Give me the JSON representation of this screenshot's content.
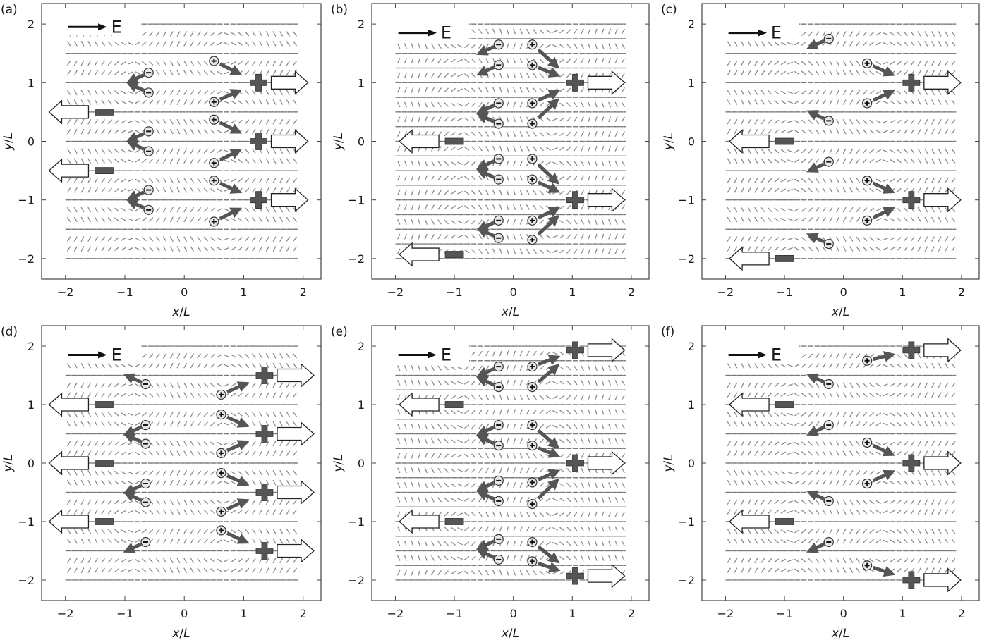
{
  "figure": {
    "field_label": "E",
    "x_axis_label": "x/L",
    "y_axis_label": "y/L",
    "x_ticks": [
      -2,
      -1,
      0,
      1,
      2
    ],
    "y_ticks": [
      2,
      1,
      0,
      -1,
      -2
    ],
    "x_range": [
      -2.4,
      2.3
    ],
    "y_range": [
      -2.35,
      2.35
    ]
  },
  "panels": [
    {
      "label": "(a)",
      "lines": [
        -2,
        -1.5,
        -1,
        -0.5,
        0,
        0.5,
        1,
        1.5,
        2
      ],
      "strong_lines": [
        -1.5,
        -0.5,
        0.5,
        1.5
      ],
      "bend_sign": 1,
      "neg_walls": [
        0.5,
        -0.5
      ],
      "pos_walls": [
        1,
        0,
        -1
      ],
      "wall_neg_x": -1.35,
      "wall_pos_x": 1.25,
      "neg_defect_x": -0.6,
      "pos_defect_x": 0.5,
      "neg_defect_y": [
        1.17,
        0.83,
        0.17,
        -0.17,
        -0.83,
        -1.17
      ],
      "pos_defect_y": [
        1.37,
        0.67,
        0.37,
        -0.37,
        -0.67,
        -1.37
      ]
    },
    {
      "label": "(b)",
      "lines": [
        -2,
        -1.75,
        -1.5,
        -1.25,
        -1,
        -0.75,
        -0.5,
        -0.25,
        0,
        0.25,
        0.5,
        0.75,
        1,
        1.25,
        1.5,
        1.75,
        2
      ],
      "strong_lines": [
        -1.5,
        -0.5,
        0.5,
        1.5
      ],
      "bend_sign": 1,
      "neg_walls": [
        0,
        -1.93
      ],
      "pos_walls": [
        1,
        -1
      ],
      "wall_neg_x": -1.0,
      "wall_pos_x": 1.05,
      "neg_defect_x": -0.25,
      "pos_defect_x": 0.32,
      "neg_defect_y": [
        1.65,
        1.3,
        0.65,
        0.3,
        -0.3,
        -0.65,
        -1.35,
        -1.65
      ],
      "pos_defect_y": [
        1.65,
        1.3,
        0.65,
        0.3,
        -0.3,
        -0.65,
        -1.35,
        -1.68
      ]
    },
    {
      "label": "(c)",
      "lines": [
        -2,
        -1.5,
        -1,
        -0.5,
        0,
        0.5,
        1,
        1.5,
        2
      ],
      "strong_lines": [
        -1.5,
        -0.5,
        0.5,
        1.5
      ],
      "bend_sign": 1,
      "neg_walls": [
        0,
        -2
      ],
      "pos_walls": [
        1,
        -1
      ],
      "wall_neg_x": -1.0,
      "wall_pos_x": 1.15,
      "neg_defect_x": -0.25,
      "pos_defect_x": 0.4,
      "neg_defect_y": [
        1.75,
        0.35,
        -0.35,
        -1.75
      ],
      "pos_defect_y": [
        1.33,
        0.65,
        -0.67,
        -1.35
      ]
    },
    {
      "label": "(d)",
      "lines": [
        -2,
        -1.5,
        -1,
        -0.5,
        0,
        0.5,
        1,
        1.5,
        2
      ],
      "strong_lines": [
        -2,
        -1,
        0,
        1,
        2
      ],
      "bend_sign": -1,
      "neg_walls": [
        1,
        0,
        -1
      ],
      "pos_walls": [
        1.5,
        0.5,
        -0.5,
        -1.5
      ],
      "wall_neg_x": -1.35,
      "wall_pos_x": 1.35,
      "neg_defect_x": -0.65,
      "pos_defect_x": 0.62,
      "neg_defect_y": [
        1.35,
        0.65,
        0.33,
        -0.35,
        -0.67,
        -1.35
      ],
      "pos_defect_y": [
        1.17,
        0.83,
        0.17,
        -0.17,
        -0.83,
        -1.15
      ]
    },
    {
      "label": "(e)",
      "lines": [
        -2,
        -1.75,
        -1.5,
        -1.25,
        -1,
        -0.75,
        -0.5,
        -0.25,
        0,
        0.25,
        0.5,
        0.75,
        1,
        1.25,
        1.5,
        1.75,
        2
      ],
      "strong_lines": [
        -2,
        -1,
        0,
        1,
        2
      ],
      "bend_sign": -1,
      "neg_walls": [
        1,
        -1
      ],
      "pos_walls": [
        1.93,
        0,
        -1.93
      ],
      "wall_neg_x": -1.0,
      "wall_pos_x": 1.05,
      "neg_defect_x": -0.25,
      "pos_defect_x": 0.32,
      "neg_defect_y": [
        1.65,
        1.3,
        0.65,
        0.3,
        -0.3,
        -0.65,
        -1.3,
        -1.65
      ],
      "pos_defect_y": [
        1.65,
        1.3,
        0.65,
        0.3,
        -0.33,
        -0.7,
        -1.35,
        -1.68
      ]
    },
    {
      "label": "(f)",
      "lines": [
        -2,
        -1.5,
        -1,
        -0.5,
        0,
        0.5,
        1,
        1.5,
        2
      ],
      "strong_lines": [
        -2,
        -1,
        0,
        1,
        2
      ],
      "bend_sign": -1,
      "neg_walls": [
        1,
        -1
      ],
      "pos_walls": [
        1.93,
        0,
        -2
      ],
      "wall_neg_x": -1.0,
      "wall_pos_x": 1.15,
      "neg_defect_x": -0.25,
      "pos_defect_x": 0.4,
      "neg_defect_y": [
        1.35,
        0.65,
        -0.65,
        -1.35
      ],
      "pos_defect_y": [
        1.75,
        0.35,
        -0.35,
        -1.75
      ]
    }
  ]
}
